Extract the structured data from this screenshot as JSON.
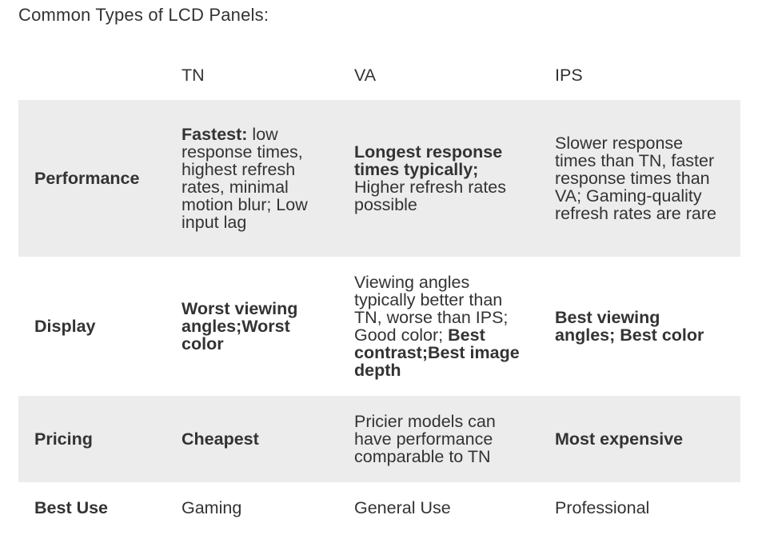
{
  "title": "Common Types of LCD Panels:",
  "columns": [
    "",
    "TN",
    "VA",
    "IPS"
  ],
  "rows": [
    {
      "label": "Performance",
      "cells": [
        {
          "bold": "Fastest:",
          "text": " low response times, highest refresh rates, minimal motion blur; Low input lag"
        },
        {
          "bold": "Longest response times typically;",
          "text": " Higher refresh rates possible"
        },
        {
          "bold": "",
          "text": "Slower response times than TN, faster response times than VA; Gaming-quality refresh rates are rare"
        }
      ]
    },
    {
      "label": "Display",
      "cells": [
        {
          "bold": "Worst viewing angles;Worst color",
          "text": ""
        },
        {
          "text": "Viewing angles typically better than TN, worse than IPS; Good color; ",
          "bold_after": "Best contrast;Best image depth"
        },
        {
          "bold": "Best viewing angles; Best color",
          "text": ""
        }
      ]
    },
    {
      "label": "Pricing",
      "cells": [
        {
          "bold": "Cheapest",
          "text": ""
        },
        {
          "bold": "",
          "text": "Pricier models can have performance comparable to TN"
        },
        {
          "bold": "Most expensive",
          "text": ""
        }
      ]
    },
    {
      "label": "Best Use",
      "cells": [
        {
          "bold": "",
          "text": "Gaming"
        },
        {
          "bold": "",
          "text": "General Use"
        },
        {
          "bold": "",
          "text": "Professional"
        }
      ]
    }
  ]
}
